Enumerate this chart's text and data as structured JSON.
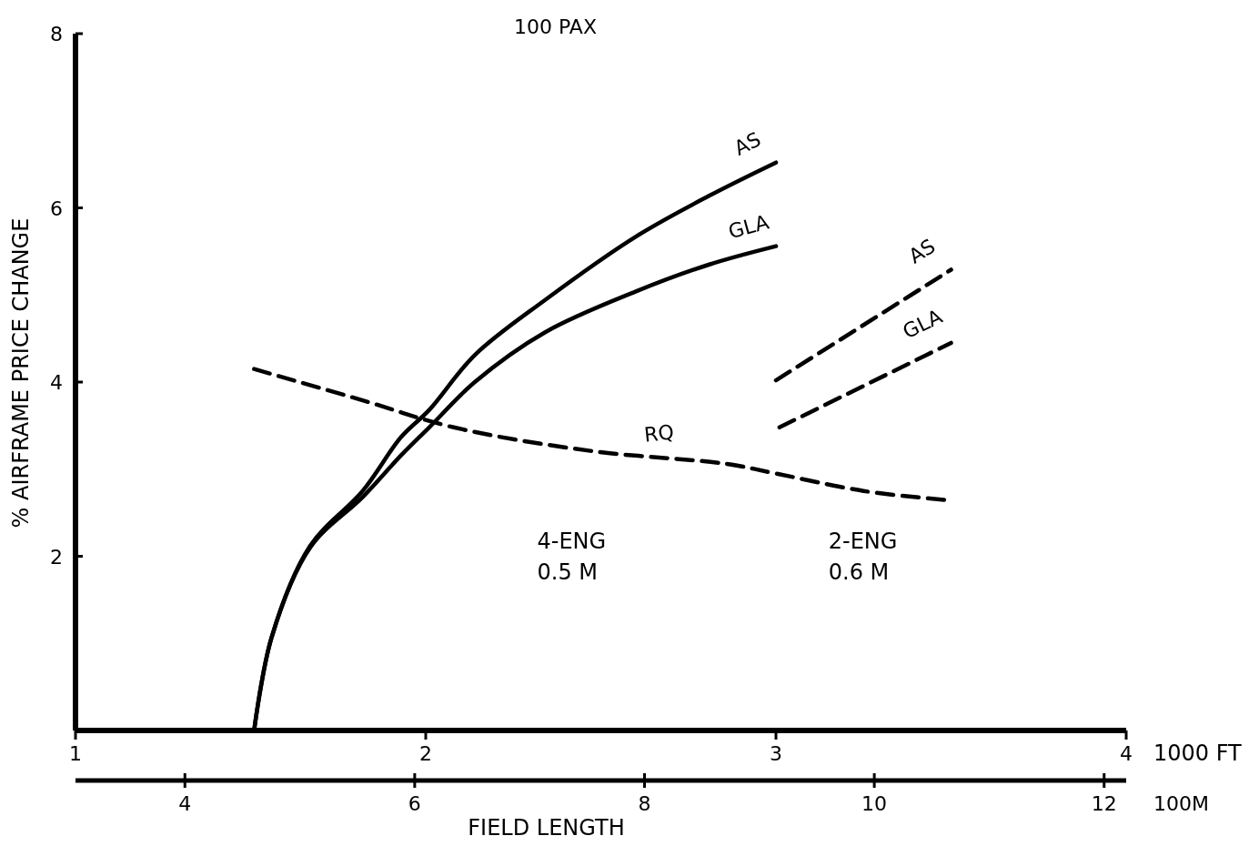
{
  "chart_data": {
    "type": "line",
    "title": "100 PAX",
    "xlabel": "FIELD LENGTH",
    "ylabel": "% AIRFRAME PRICE CHANGE",
    "x2label": "100M",
    "xlim": [
      1,
      4
    ],
    "xticks": [
      1,
      2,
      3,
      4
    ],
    "x2lim": [
      3.048,
      12.192
    ],
    "x2ticks": [
      4,
      6,
      8,
      10,
      12
    ],
    "ylim": [
      0,
      8
    ],
    "yticks": [
      2,
      4,
      6,
      8
    ],
    "annotations": [
      "1000 FT",
      "4-ENG\n0.5 M",
      "2-ENG\n0.6 M"
    ],
    "series": [
      {
        "name": "AS",
        "color": "#000000",
        "line_style": "solid",
        "x": [
          1.51,
          1.56,
          1.67,
          1.82,
          1.93,
          2.01,
          2.14,
          2.34,
          2.6,
          2.81,
          3.0
        ],
        "values": [
          0,
          1.07,
          2.12,
          2.75,
          3.37,
          3.68,
          4.31,
          4.94,
          5.67,
          6.14,
          6.52
        ]
      },
      {
        "name": "GLA",
        "color": "#000000",
        "line_style": "solid",
        "x": [
          1.51,
          1.56,
          1.67,
          1.82,
          1.93,
          2.01,
          2.14,
          2.34,
          2.6,
          2.81,
          3.0
        ],
        "values": [
          0,
          1.07,
          2.1,
          2.68,
          3.16,
          3.48,
          4.0,
          4.57,
          5.04,
          5.35,
          5.56
        ]
      },
      {
        "name": "AS",
        "color": "#000000",
        "line_style": "dashed",
        "x": [
          3.0,
          3.5
        ],
        "values": [
          4.02,
          5.29
        ]
      },
      {
        "name": "GLA",
        "color": "#000000",
        "line_style": "dashed",
        "x": [
          3.01,
          3.5
        ],
        "values": [
          3.48,
          4.45
        ]
      },
      {
        "name": "RQ",
        "color": "#000000",
        "line_style": "dashed",
        "x": [
          1.51,
          1.82,
          2.08,
          2.47,
          2.86,
          3.0,
          3.25,
          3.5
        ],
        "values": [
          4.15,
          3.79,
          3.48,
          3.21,
          3.06,
          2.95,
          2.75,
          2.64
        ]
      }
    ]
  }
}
